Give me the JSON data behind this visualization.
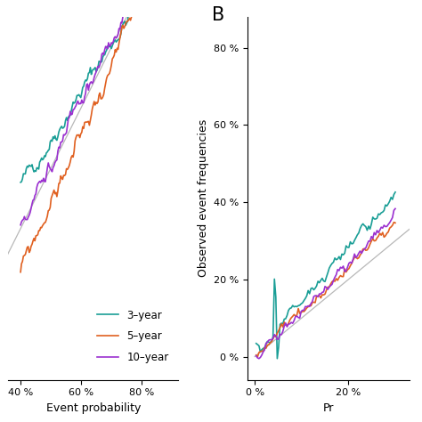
{
  "colors": {
    "3-year": "#1a9e96",
    "5-year": "#e06020",
    "10-year": "#9b30d0",
    "diagonal": "#b8b8b8"
  },
  "linewidth": 1.2,
  "diagonal_linewidth": 0.9,
  "background": "#ffffff",
  "label_fontsize": 9,
  "tick_fontsize": 8,
  "legend_fontsize": 8.5,
  "panel_A": {
    "xlim": [
      0.36,
      0.92
    ],
    "ylim": [
      0.15,
      0.75
    ],
    "xticks": [
      0.4,
      0.6,
      0.8
    ],
    "xticklabels": [
      "40 %",
      "60 %",
      "80 %"
    ],
    "xlabel": "Event probability"
  },
  "panel_B": {
    "xlim": [
      -0.015,
      0.33
    ],
    "ylim": [
      -0.06,
      0.88
    ],
    "xticks": [
      0.0,
      0.2
    ],
    "xticklabels": [
      "0 %",
      "20 %"
    ],
    "yticks": [
      0.0,
      0.2,
      0.4,
      0.6,
      0.8
    ],
    "yticklabels": [
      "0 %",
      "20 %",
      "40 %",
      "60 %",
      "80 %"
    ],
    "xlabel": "Pr",
    "ylabel": "Observed event frequencies",
    "label": "B"
  }
}
